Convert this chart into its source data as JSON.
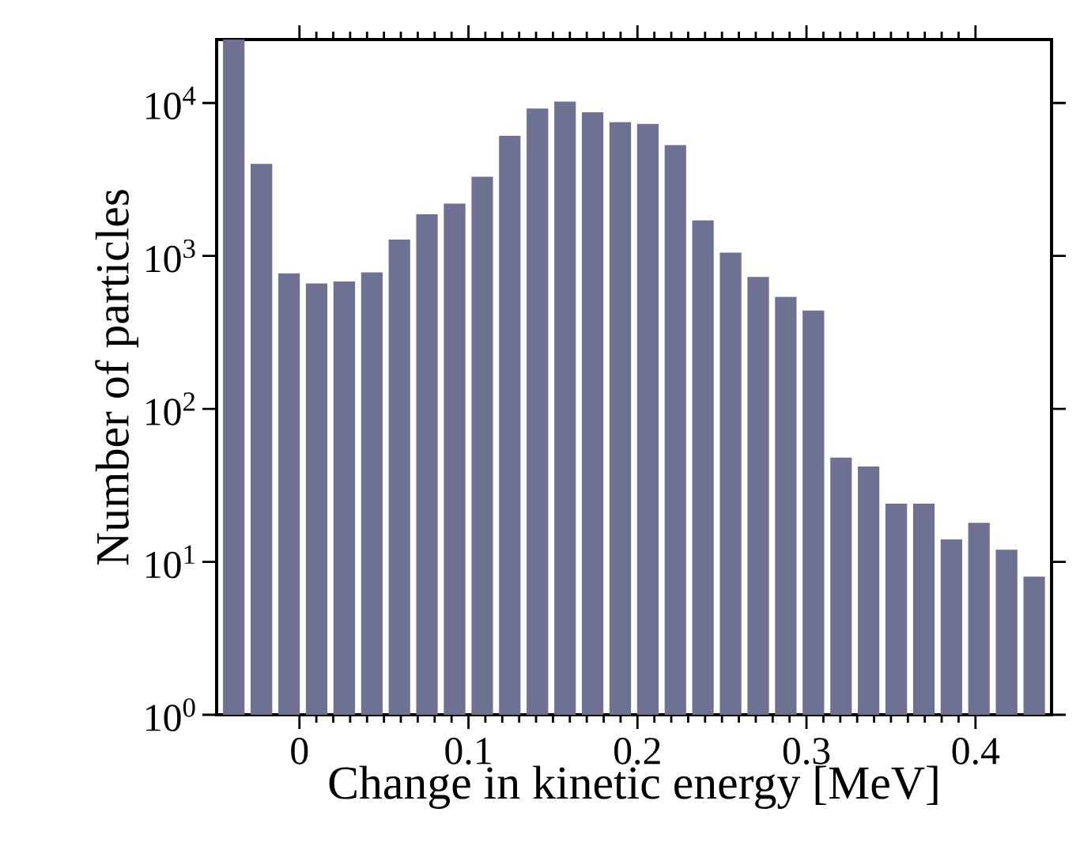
{
  "chart_data": {
    "type": "histogram",
    "xlabel": "Change in kinetic energy [MeV]",
    "ylabel": "Number of particles",
    "bins": [
      -0.047,
      -0.0307,
      -0.0143,
      0.002,
      0.0183,
      0.0347,
      0.051,
      0.0673,
      0.0836,
      0.1,
      0.1163,
      0.1326,
      0.149,
      0.1653,
      0.1816,
      0.198,
      0.2143,
      0.2306,
      0.2469,
      0.2633,
      0.2796,
      0.2959,
      0.3123,
      0.3286,
      0.3449,
      0.3613,
      0.3776,
      0.3939,
      0.4102,
      0.4266,
      0.4429
    ],
    "values": [
      26000,
      4000,
      770,
      660,
      680,
      780,
      1280,
      1870,
      2200,
      3300,
      6100,
      9200,
      10200,
      8700,
      7500,
      7300,
      5300,
      1710,
      1050,
      730,
      540,
      440,
      48,
      42,
      24,
      24,
      14,
      18,
      12,
      8
    ],
    "color": "#6e7191",
    "log": "y",
    "xlim": [
      -0.049,
      0.445
    ],
    "ylim": [
      1,
      26000
    ],
    "xticks": [
      0,
      0.1,
      0.2,
      0.3,
      0.4
    ],
    "yticks": [
      {
        "value": 1,
        "label": "10$^{0}$"
      },
      {
        "value": 10,
        "label": "10$^{1}$"
      },
      {
        "value": 100,
        "label": "10$^{2}$"
      },
      {
        "value": 1000,
        "label": "10$^{3}$"
      },
      {
        "value": 10000,
        "label": "10$^{4}$"
      }
    ]
  }
}
